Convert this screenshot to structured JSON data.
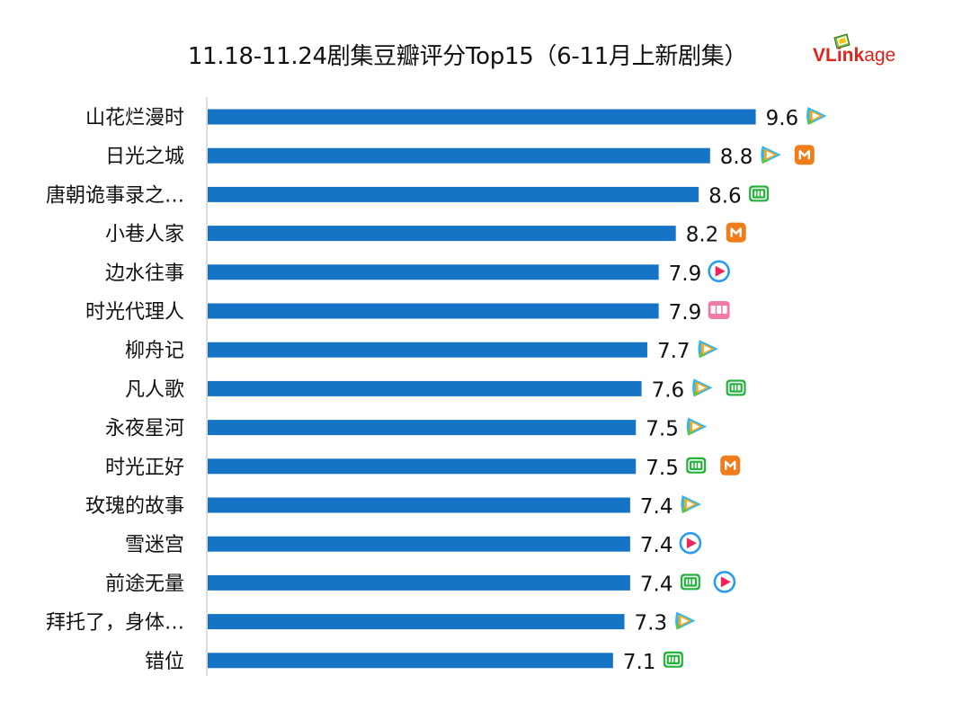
{
  "header": {
    "title": "11.18-11.24剧集豆瓣评分Top15（6-11月上新剧集）",
    "logo_text_bold": "VLink",
    "logo_text_rest": "age"
  },
  "colors": {
    "bar": "#1674c6",
    "axis": "#d4d4d4",
    "tencent_icon": "tencent-video-icon",
    "iqiyi_icon": "iqiyi-icon",
    "mango_icon": "mango-tv-icon",
    "youku_icon": "youku-icon",
    "bilibili_icon": "bilibili-icon"
  },
  "chart_data": {
    "type": "bar",
    "orientation": "horizontal",
    "title": "11.18-11.24剧集豆瓣评分Top15（6-11月上新剧集）",
    "xlim": [
      0,
      10
    ],
    "grid": false,
    "categories": [
      "山花烂漫时",
      "日光之城",
      "唐朝诡事录之…",
      "小巷人家",
      "边水往事",
      "时光代理人",
      "柳舟记",
      "凡人歌",
      "永夜星河",
      "时光正好",
      "玫瑰的故事",
      "雪迷宫",
      "前途无量",
      "拜托了，身体…",
      "错位"
    ],
    "values": [
      9.6,
      8.8,
      8.6,
      8.2,
      7.9,
      7.9,
      7.7,
      7.6,
      7.5,
      7.5,
      7.4,
      7.4,
      7.4,
      7.3,
      7.1
    ],
    "labels": [
      "9.6",
      "8.8",
      "8.6",
      "8.2",
      "7.9",
      "7.9",
      "7.7",
      "7.6",
      "7.5",
      "7.5",
      "7.4",
      "7.4",
      "7.4",
      "7.3",
      "7.1"
    ],
    "platforms": [
      [
        "tencent"
      ],
      [
        "tencent",
        "mango"
      ],
      [
        "iqiyi"
      ],
      [
        "mango"
      ],
      [
        "youku"
      ],
      [
        "bilibili"
      ],
      [
        "tencent"
      ],
      [
        "tencent",
        "iqiyi"
      ],
      [
        "tencent"
      ],
      [
        "iqiyi",
        "mango"
      ],
      [
        "tencent"
      ],
      [
        "youku"
      ],
      [
        "iqiyi",
        "youku"
      ],
      [
        "tencent"
      ],
      [
        "iqiyi"
      ]
    ]
  }
}
